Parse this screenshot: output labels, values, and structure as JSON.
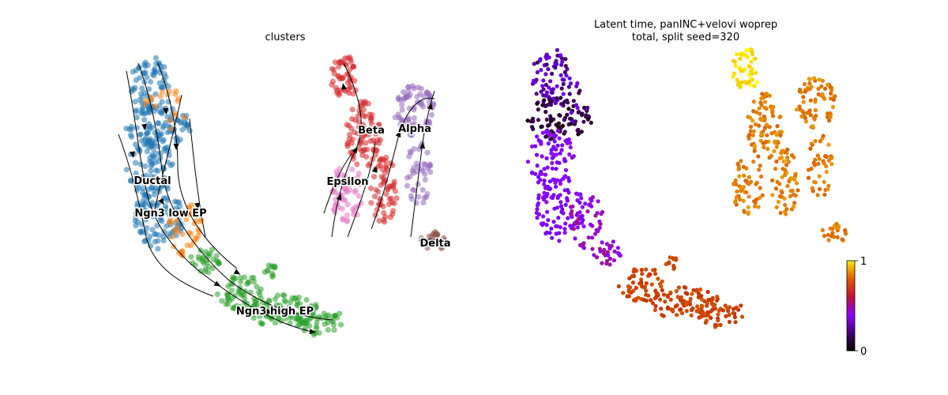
{
  "chart_data": [
    {
      "type": "scatter",
      "title": "clusters",
      "embedding": "umap",
      "streamlines": true,
      "point_alpha": 0.55,
      "clusters": [
        {
          "name": "Ductal",
          "color": "#1f77b4"
        },
        {
          "name": "Ngn3 low EP",
          "color": "#ff7f0e"
        },
        {
          "name": "Ngn3 high EP",
          "color": "#2ca02c"
        },
        {
          "name": "Beta",
          "color": "#d62728"
        },
        {
          "name": "Alpha",
          "color": "#9467bd"
        },
        {
          "name": "Epsilon",
          "color": "#e377c2"
        },
        {
          "name": "Delta",
          "color": "#8c564b"
        }
      ]
    },
    {
      "type": "scatter",
      "title_line1": "Latent time, panINC+velovi woprep",
      "title_line2": "total, split seed=320",
      "colormap": "gnuplot",
      "colorbar": {
        "min": 0,
        "max": 1,
        "ticks": [
          "0",
          "1"
        ]
      },
      "value_ranges": [
        {
          "region": "ductal-top",
          "min": 0.05,
          "max": 0.22
        },
        {
          "region": "ductal-dark-core",
          "min": 0.0,
          "max": 0.08
        },
        {
          "region": "ductal-lower",
          "min": 0.2,
          "max": 0.32
        },
        {
          "region": "ngn3-low-tail",
          "min": 0.3,
          "max": 0.42
        },
        {
          "region": "ngn3-high",
          "min": 0.58,
          "max": 0.7
        },
        {
          "region": "endocrine-top",
          "min": 0.92,
          "max": 1.0
        },
        {
          "region": "endocrine-body",
          "min": 0.72,
          "max": 0.85
        }
      ]
    }
  ]
}
